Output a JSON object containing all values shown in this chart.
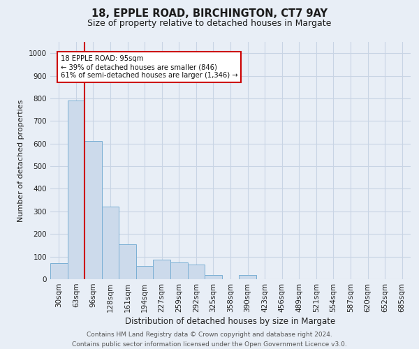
{
  "title_line1": "18, EPPLE ROAD, BIRCHINGTON, CT7 9AY",
  "title_line2": "Size of property relative to detached houses in Margate",
  "xlabel": "Distribution of detached houses by size in Margate",
  "ylabel": "Number of detached properties",
  "footer_line1": "Contains HM Land Registry data © Crown copyright and database right 2024.",
  "footer_line2": "Contains public sector information licensed under the Open Government Licence v3.0.",
  "bar_labels": [
    "30sqm",
    "63sqm",
    "96sqm",
    "128sqm",
    "161sqm",
    "194sqm",
    "227sqm",
    "259sqm",
    "292sqm",
    "325sqm",
    "358sqm",
    "390sqm",
    "423sqm",
    "456sqm",
    "489sqm",
    "521sqm",
    "554sqm",
    "587sqm",
    "620sqm",
    "652sqm",
    "685sqm"
  ],
  "bar_values": [
    70,
    790,
    610,
    320,
    155,
    60,
    85,
    75,
    65,
    20,
    0,
    20,
    0,
    0,
    0,
    0,
    0,
    0,
    0,
    0,
    0
  ],
  "bar_color": "#ccdaeb",
  "bar_edge_color": "#7aafd4",
  "grid_color": "#c8d4e4",
  "annotation_text": "18 EPPLE ROAD: 95sqm\n← 39% of detached houses are smaller (846)\n61% of semi-detached houses are larger (1,346) →",
  "annotation_box_color": "#ffffff",
  "annotation_box_edge": "#cc0000",
  "vline_color": "#cc0000",
  "vline_x_index": 1.5,
  "ylim": [
    0,
    1050
  ],
  "yticks": [
    0,
    100,
    200,
    300,
    400,
    500,
    600,
    700,
    800,
    900,
    1000
  ],
  "background_color": "#e8eef6",
  "plot_background_color": "#e8eef6",
  "title_fontsize": 10.5,
  "subtitle_fontsize": 9,
  "ylabel_fontsize": 8,
  "xlabel_fontsize": 8.5,
  "tick_fontsize": 7.5,
  "footer_fontsize": 6.5
}
